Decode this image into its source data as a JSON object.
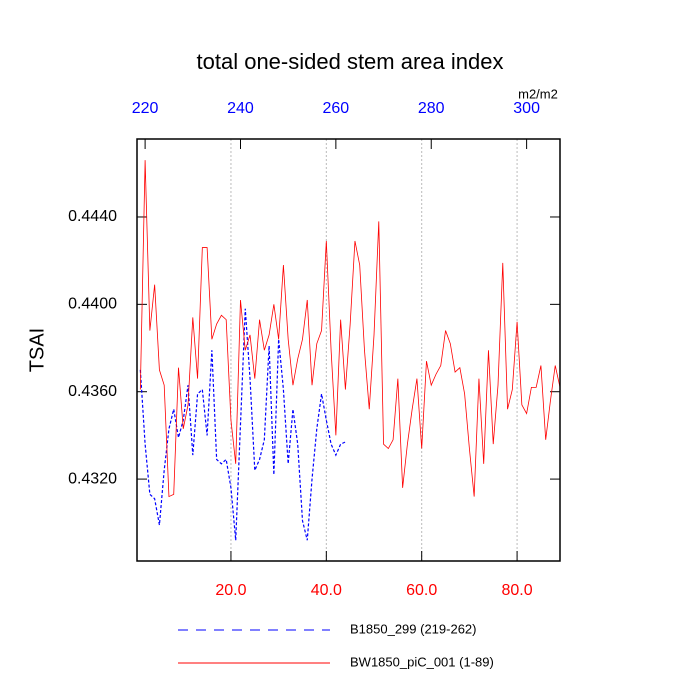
{
  "chart_data": {
    "type": "line",
    "title": "total one-sided stem area index",
    "ylabel": "TSAI",
    "x2label": "m2/m2",
    "x": [
      1,
      2,
      3,
      4,
      5,
      6,
      7,
      8,
      9,
      10,
      11,
      12,
      13,
      14,
      15,
      16,
      17,
      18,
      19,
      20,
      21,
      22,
      23,
      24,
      25,
      26,
      27,
      28,
      29,
      30,
      31,
      32,
      33,
      34,
      35,
      36,
      37,
      38,
      39,
      40,
      41,
      42,
      43,
      44,
      45,
      46,
      47,
      48,
      49,
      50,
      51,
      52,
      53,
      54,
      55,
      56,
      57,
      58,
      59,
      60,
      61,
      62,
      63,
      64,
      65,
      66,
      67,
      68,
      69,
      70,
      71,
      72,
      73,
      74,
      75,
      76,
      77,
      78,
      79,
      80,
      81,
      82,
      83,
      84,
      85,
      86,
      87,
      88,
      89
    ],
    "series": [
      {
        "name": "B1850_299 (219-262)",
        "color": "#0000ff",
        "dash": true,
        "values": [
          0.437,
          0.4336,
          0.4313,
          0.4311,
          0.4299,
          0.4324,
          0.4343,
          0.4352,
          0.4339,
          0.4347,
          0.4363,
          0.4331,
          0.4359,
          0.4361,
          0.434,
          0.4379,
          0.4329,
          0.4327,
          0.4329,
          0.4316,
          0.4292,
          0.4345,
          0.4398,
          0.4366,
          0.4324,
          0.4329,
          0.4338,
          0.4381,
          0.4322,
          0.4384,
          0.4361,
          0.4327,
          0.4352,
          0.4336,
          0.4301,
          0.4292,
          0.432,
          0.4343,
          0.4359,
          0.4347,
          0.4336,
          0.4331,
          0.4336,
          0.4337,
          null,
          null,
          null,
          null,
          null,
          null,
          null,
          null,
          null,
          null,
          null,
          null,
          null,
          null,
          null,
          null,
          null,
          null,
          null,
          null,
          null,
          null,
          null,
          null,
          null,
          null,
          null,
          null,
          null,
          null,
          null,
          null,
          null,
          null,
          null,
          null,
          null,
          null,
          null,
          null,
          null,
          null,
          null,
          null,
          null
        ]
      },
      {
        "name": "BW1850_piC_001 (1-89)",
        "color": "#ff0000",
        "dash": false,
        "values": [
          0.4361,
          0.4466,
          0.4388,
          0.4409,
          0.437,
          0.4363,
          0.4312,
          0.4313,
          0.4371,
          0.4343,
          0.4354,
          0.4394,
          0.4366,
          0.4426,
          0.4426,
          0.4384,
          0.4391,
          0.4395,
          0.4393,
          0.4347,
          0.4327,
          0.4402,
          0.4379,
          0.4386,
          0.4366,
          0.4393,
          0.4379,
          0.4386,
          0.44,
          0.4384,
          0.4418,
          0.4384,
          0.4363,
          0.4375,
          0.4384,
          0.4402,
          0.4363,
          0.4382,
          0.4388,
          0.4429,
          0.4379,
          0.434,
          0.4393,
          0.4361,
          0.4391,
          0.4429,
          0.4418,
          0.4379,
          0.4352,
          0.4386,
          0.4438,
          0.4336,
          0.4334,
          0.4338,
          0.4366,
          0.4316,
          0.4336,
          0.4352,
          0.4366,
          0.4334,
          0.4374,
          0.4363,
          0.4368,
          0.4372,
          0.4388,
          0.4382,
          0.4369,
          0.4371,
          0.4359,
          0.4334,
          0.4312,
          0.4366,
          0.4327,
          0.4379,
          0.4336,
          0.4363,
          0.4419,
          0.4352,
          0.4361,
          0.4392,
          0.4354,
          0.435,
          0.4362,
          0.4362,
          0.4372,
          0.4338,
          0.4356,
          0.4372,
          0.4362
        ]
      }
    ],
    "xlim": [
      0.3,
      89
    ],
    "xticks": [
      {
        "value": 20,
        "label": "20.0"
      },
      {
        "value": 40,
        "label": "40.0"
      },
      {
        "value": 60,
        "label": "60.0"
      },
      {
        "value": 80,
        "label": "80.0"
      }
    ],
    "x2lim": [
      218.3,
      307
    ],
    "x2ticks": [
      220,
      240,
      260,
      280,
      300
    ],
    "ylim": [
      0.42825,
      0.44757
    ],
    "yticks": [
      {
        "value": 0.432,
        "label": "0.4320"
      },
      {
        "value": 0.436,
        "label": "0.4360"
      },
      {
        "value": 0.44,
        "label": "0.4400"
      },
      {
        "value": 0.444,
        "label": "0.4440"
      }
    ],
    "grid": "x"
  }
}
